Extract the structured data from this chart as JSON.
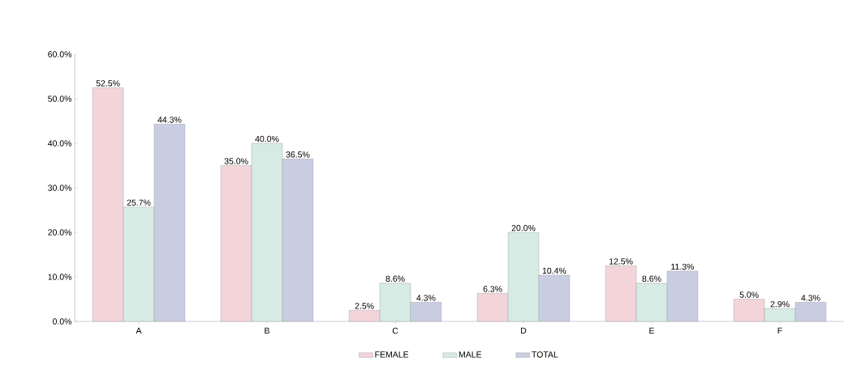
{
  "chart_data": {
    "type": "bar",
    "categories": [
      "A",
      "B",
      "C",
      "D",
      "E",
      "F"
    ],
    "series": [
      {
        "name": "FEMALE",
        "color": "#f3d5d9",
        "values": [
          52.5,
          35.0,
          2.5,
          6.3,
          12.5,
          5.0
        ],
        "value_labels": [
          "52.5%",
          "35.0%",
          "2.5%",
          "6.3%",
          "12.5%",
          "5.0%"
        ]
      },
      {
        "name": "MALE",
        "color": "#d6ebe4",
        "values": [
          25.7,
          40.0,
          8.6,
          20.0,
          8.6,
          2.9
        ],
        "value_labels": [
          "25.7%",
          "40.0%",
          "8.6%",
          "20.0%",
          "8.6%",
          "2.9%"
        ]
      },
      {
        "name": "TOTAL",
        "color": "#c9cde2",
        "values": [
          44.3,
          36.5,
          4.3,
          10.4,
          11.3,
          4.3
        ],
        "value_labels": [
          "44.3%",
          "36.5%",
          "4.3%",
          "10.4%",
          "11.3%",
          "4.3%"
        ]
      }
    ],
    "ylim": [
      0,
      60
    ],
    "yticks": [
      {
        "value": 0,
        "label": "0.0%"
      },
      {
        "value": 10,
        "label": "10.0%"
      },
      {
        "value": 20,
        "label": "20.0%"
      },
      {
        "value": 30,
        "label": "30.0%"
      },
      {
        "value": 40,
        "label": "40.0%"
      },
      {
        "value": 50,
        "label": "50.0%"
      },
      {
        "value": 60,
        "label": "60.0%"
      }
    ],
    "grid": false,
    "legend": "bottom"
  }
}
